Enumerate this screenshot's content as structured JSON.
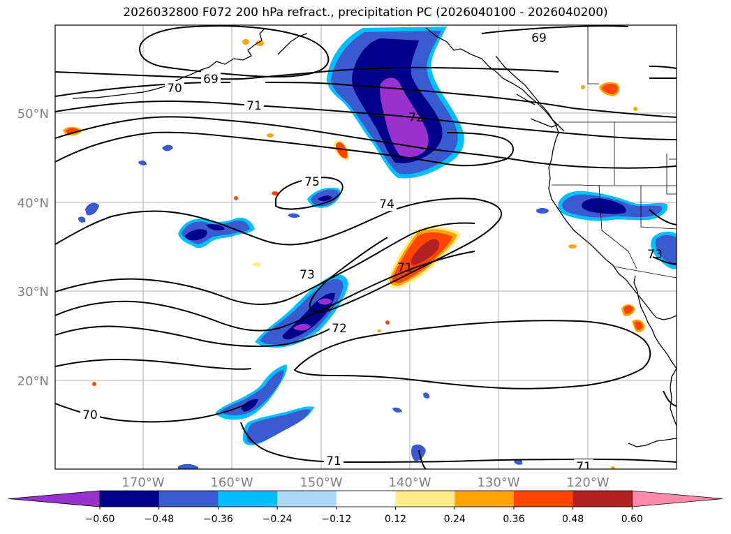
{
  "title": "2026032800 F072 200 hPa refract., precipitation PC (2026040100 - 2026040200)",
  "map": {
    "lat_labels": [
      "50°N",
      "40°N",
      "30°N",
      "20°N"
    ],
    "lon_labels": [
      "170°W",
      "160°W",
      "150°W",
      "140°W",
      "130°W",
      "120°W"
    ],
    "contour_labels": [
      "69",
      "70",
      "71",
      "72",
      "75",
      "74",
      "73",
      "71",
      "72",
      "70",
      "71",
      "69",
      "71",
      "73"
    ]
  },
  "colorbar": {
    "colors": [
      "#9932cc",
      "#00008b",
      "#3a5bd0",
      "#00bfff",
      "#add8f6",
      "#ffffff",
      "#ffec8b",
      "#ffa500",
      "#ff4500",
      "#b22222",
      "#ff89aa"
    ],
    "labels": [
      "−0.60",
      "−0.48",
      "−0.36",
      "−0.24",
      "−0.12",
      "0.12",
      "0.24",
      "0.36",
      "0.48",
      "0.60"
    ]
  },
  "colors": {
    "negative_light": "#00bfff",
    "negative_mid": "#3a5bd0",
    "negative_dark": "#00008b",
    "negative_darkest": "#9932cc",
    "positive_light": "#ffec8b",
    "positive_mid": "#ffa500",
    "positive_strong": "#ff4500",
    "positive_darker": "#b22222"
  }
}
